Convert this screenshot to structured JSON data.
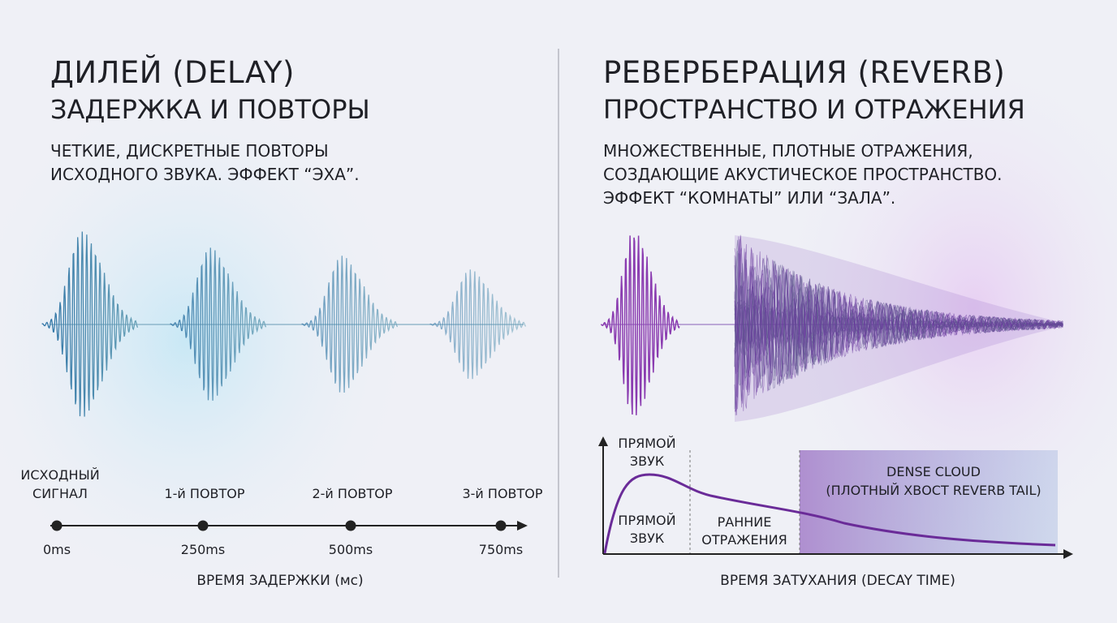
{
  "delay": {
    "title": "ДИЛЕЙ (DELAY)",
    "subtitle": "ЗАДЕРЖКА И ПОВТОРЫ",
    "description": [
      "ЧЕТКИЕ, ДИСКРЕТНЫЕ ПОВТОРЫ",
      "ИСХОДНОГО ЗВУКА. ЭФФЕКТ “ЭХА”."
    ],
    "events": [
      {
        "label": [
          "ИСХОДНЫЙ",
          "СИГНАЛ"
        ],
        "time": "0ms"
      },
      {
        "label": [
          "1-й ПОВТОР"
        ],
        "time": "250ms"
      },
      {
        "label": [
          "2-й ПОВТОР"
        ],
        "time": "500ms"
      },
      {
        "label": [
          "3-й ПОВТОР"
        ],
        "time": "750ms"
      }
    ],
    "axis_label": "ВРЕМЯ ЗАДЕРЖКИ (мс)"
  },
  "reverb": {
    "title": "РЕВЕРБЕРАЦИЯ (REVERB)",
    "subtitle": "ПРОСТРАНСТВО И ОТРАЖЕНИЯ",
    "description": [
      "МНОЖЕСТВЕННЫЕ, ПЛОТНЫЕ ОТРАЖЕНИЯ,",
      "СОЗДАЮЩИЕ АКУСТИЧЕСКОЕ ПРОСТРАНСТВО.",
      "ЭФФЕКТ “КОМНАТЫ” ИЛИ “ЗАЛА”."
    ],
    "peak_label": [
      "ПРЯМОЙ",
      "ЗВУК"
    ],
    "direct_label": [
      "ПРЯМОЙ",
      "ЗВУК"
    ],
    "early_label": [
      "РАННИЕ",
      "ОТРАЖЕНИЯ"
    ],
    "tail_label": [
      "DENSE CLOUD",
      "(ПЛОТНЫЙ ХВОСТ REVERB TAIL)"
    ],
    "axis_label": "ВРЕМЯ ЗАТУХАНИЯ (DECAY TIME)"
  }
}
